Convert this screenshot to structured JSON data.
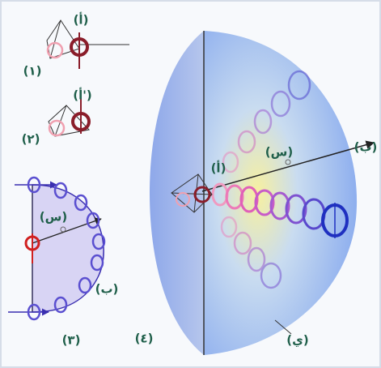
{
  "labels": [
    "(أ)",
    "(١)",
    "(أ')",
    "(٢)",
    "(س)",
    "(ب)",
    "(٣)",
    "(٤)",
    "(أ)",
    "(س)",
    "(ب)",
    "(ي)"
  ]
}
